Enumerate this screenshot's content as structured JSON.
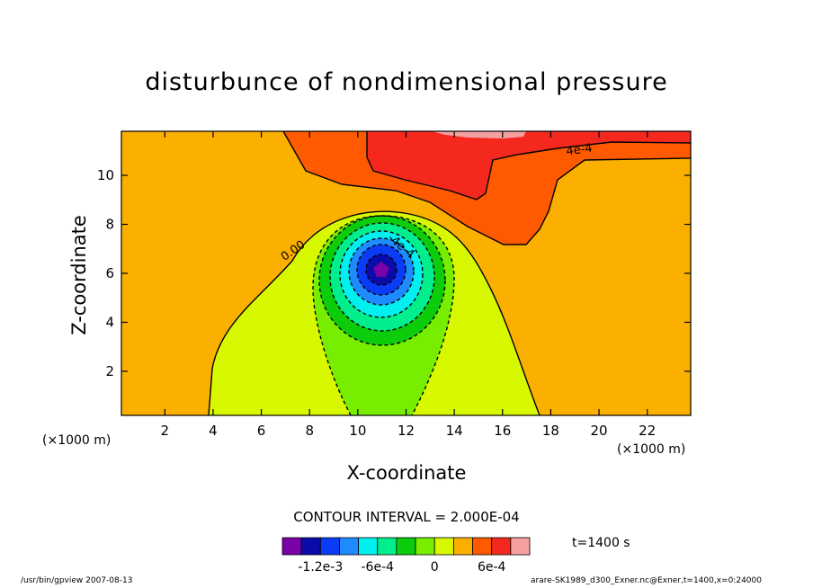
{
  "chart_data": {
    "type": "contour",
    "title": "disturbunce of nondimensional pressure",
    "xlabel": "X-coordinate",
    "ylabel": "Z-coordinate",
    "x_unit": "(×1000 m)",
    "x_ticks": [
      "2",
      "4",
      "6",
      "8",
      "10",
      "12",
      "14",
      "16",
      "18",
      "20",
      "22"
    ],
    "y_ticks": [
      "2",
      "4",
      "6",
      "8",
      "10"
    ],
    "xlim": [
      0.2,
      23.8
    ],
    "ylim": [
      0.2,
      11.8
    ],
    "contour_interval_text": "CONTOUR INTERVAL = 2.000E-04",
    "contour_labels": [
      {
        "text": "0.00",
        "x": 7.4,
        "y": 6.8
      },
      {
        "text": "4e-4",
        "x": 19.2,
        "y": 10.9
      },
      {
        "text": "-4e-4",
        "x": 11.7,
        "y": 7.0
      }
    ],
    "features": {
      "minimum_center": {
        "x": 10.9,
        "y": 6.0,
        "approx_value": -0.0014
      },
      "negative_region": "teardrop centered near x=10.9, z=6, extending down to surface between x=9.2 and 12.5",
      "positive_region": "upper layer above z≈8.5 between x=7 and 24, maximum near top at x≈16"
    },
    "colorbar": {
      "labels": [
        "-1.2e-3",
        "-6e-4",
        "0",
        "6e-4"
      ],
      "levels": [
        -0.0016,
        -0.0014,
        -0.0012,
        -0.001,
        -0.0008,
        -0.0006,
        -0.0004,
        -0.0002,
        0,
        0.0002,
        0.0004,
        0.0006,
        0.0008
      ],
      "colors": [
        "#7a00a8",
        "#0b0ba9",
        "#0a3cf5",
        "#1e8cff",
        "#00f0f0",
        "#00ee8c",
        "#0ccc0c",
        "#77ee00",
        "#d8f800",
        "#fbb000",
        "#ff5a00",
        "#f5281e",
        "#f5a0a0"
      ]
    },
    "time_label": "t=1400 s"
  },
  "footer": {
    "left": "/usr/bin/gpview   2007-08-13",
    "right": "arare-SK1989_d300_Exner.nc@Exner,t=1400,x=0:24000"
  }
}
